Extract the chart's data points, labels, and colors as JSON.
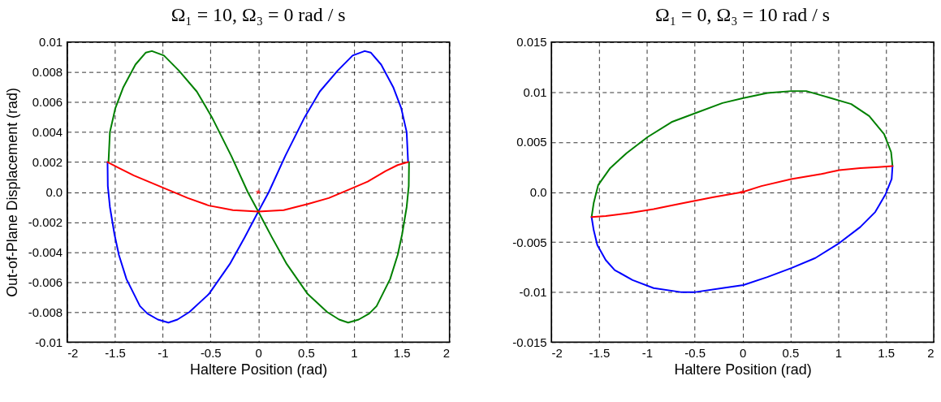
{
  "chart_data": [
    {
      "type": "line",
      "title": "Ω₁ = 10,   Ω₃ = 0    rad / s",
      "xlabel": "Haltere Position (rad)",
      "ylabel": "Out-of-Plane Displacement  (rad)",
      "xlim": [
        -2,
        2
      ],
      "xticks": [
        -2,
        -1.5,
        -1,
        -0.5,
        0,
        0.5,
        1,
        1.5,
        2
      ],
      "ylim": [
        -0.01,
        0.01
      ],
      "yticks": [
        -0.01,
        -0.008,
        -0.006,
        -0.004,
        -0.002,
        {
          "value": 0,
          "label": "0.0"
        },
        0.002,
        0.004,
        0.006,
        0.008,
        0.01
      ],
      "grid": true,
      "line_style": "solid",
      "series": [
        {
          "color": "#0000ff",
          "x": [
            -1.577,
            -1.574,
            -1.552,
            -1.505,
            -1.458,
            -1.379,
            -1.238,
            -1.16,
            -1.05,
            -0.94,
            -0.846,
            -0.721,
            -0.517,
            -0.298,
            -0.141,
            0,
            0.11,
            0.282,
            0.486,
            0.643,
            0.831,
            0.987,
            1.113,
            1.176,
            1.285,
            1.411,
            1.495,
            1.552,
            1.567
          ],
          "values": [
            0.002,
            0.0004,
            -0.001,
            -0.0028,
            -0.0042,
            -0.0058,
            -0.0076,
            -0.0081,
            -0.0085,
            -0.0087,
            -0.0085,
            -0.008,
            -0.0068,
            -0.0048,
            -0.003,
            -0.0013,
            0.0,
            0.0024,
            0.005,
            0.0067,
            0.0081,
            0.0091,
            0.0094,
            0.0093,
            0.0085,
            0.007,
            0.0056,
            0.004,
            0.002
          ]
        },
        {
          "color": "#008000",
          "x": [
            -1.567,
            -1.552,
            -1.495,
            -1.411,
            -1.285,
            -1.176,
            -1.113,
            -0.987,
            -0.831,
            -0.643,
            -0.486,
            -0.282,
            -0.11,
            0,
            0.141,
            0.298,
            0.517,
            0.721,
            0.846,
            0.94,
            1.05,
            1.16,
            1.238,
            1.379,
            1.458,
            1.505,
            1.552,
            1.574,
            1.577
          ],
          "values": [
            0.002,
            0.004,
            0.0056,
            0.007,
            0.0085,
            0.0093,
            0.0094,
            0.0091,
            0.0081,
            0.0067,
            0.005,
            0.0024,
            0.0,
            -0.0013,
            -0.003,
            -0.0048,
            -0.0068,
            -0.008,
            -0.0085,
            -0.0087,
            -0.0085,
            -0.0081,
            -0.0076,
            -0.0058,
            -0.0042,
            -0.0028,
            -0.001,
            0.0004,
            0.002
          ]
        },
        {
          "color": "#ff0000",
          "x": [
            -1.577,
            -1.458,
            -1.301,
            -1.113,
            -0.925,
            -0.737,
            -0.517,
            -0.266,
            0,
            0.266,
            0.517,
            0.737,
            0.925,
            1.144,
            1.332,
            1.458,
            1.567
          ],
          "values": [
            0.002,
            0.0016,
            0.0011,
            0.0006,
            0.0001,
            -0.0004,
            -0.0009,
            -0.0012,
            -0.0013,
            -0.0012,
            -0.0008,
            -0.0004,
            0.0001,
            0.0007,
            0.0014,
            0.0018,
            0.002
          ]
        },
        {
          "type": "scatter",
          "marker": "star",
          "color": "#ff0000",
          "x": [
            0
          ],
          "values": [
            0
          ]
        }
      ]
    },
    {
      "type": "line",
      "title": "Ω₁ = 0,   Ω₃ = 10    rad / s",
      "xlabel": "Haltere Position (rad)",
      "xlim": [
        -2,
        2
      ],
      "xticks": [
        -2,
        -1.5,
        -1,
        -0.5,
        0,
        0.5,
        1,
        1.5,
        2
      ],
      "ylim": [
        -0.015,
        0.015
      ],
      "yticks": [
        -0.015,
        -0.01,
        -0.005,
        {
          "value": 0,
          "label": "0.0"
        },
        0.005,
        0.01,
        0.015
      ],
      "grid": true,
      "line_style": "solid",
      "series": [
        {
          "color": "#008000",
          "x": [
            -1.579,
            -1.557,
            -1.51,
            -1.384,
            -1.212,
            -0.993,
            -0.742,
            -0.492,
            -0.21,
            0.009,
            0.26,
            0.51,
            0.667,
            0.886,
            1.137,
            1.325,
            1.481,
            1.554,
            1.569
          ],
          "values": [
            -0.0025,
            -0.0011,
            0.0007,
            0.0024,
            0.0039,
            0.0055,
            0.007,
            0.0079,
            0.0089,
            0.0094,
            0.0099,
            0.0101,
            0.0101,
            0.0095,
            0.0088,
            0.0076,
            0.0058,
            0.004,
            0.0026
          ]
        },
        {
          "color": "#0000ff",
          "x": [
            -1.579,
            -1.557,
            -1.519,
            -1.431,
            -1.337,
            -1.15,
            -0.93,
            -0.648,
            -0.492,
            -0.21,
            0.009,
            0.26,
            0.51,
            0.761,
            1.012,
            1.231,
            1.388,
            1.497,
            1.56,
            1.569
          ],
          "values": [
            -0.0025,
            -0.0038,
            -0.0053,
            -0.0068,
            -0.0078,
            -0.0088,
            -0.0096,
            -0.01,
            -0.01,
            -0.0096,
            -0.0093,
            -0.0085,
            -0.0076,
            -0.0066,
            -0.0051,
            -0.0035,
            -0.002,
            -0.0002,
            0.0013,
            0.0026
          ]
        },
        {
          "color": "#ff0000",
          "x": [
            -1.579,
            -1.431,
            -1.181,
            -0.93,
            -0.617,
            -0.304,
            0,
            0.197,
            0.51,
            0.824,
            1.012,
            1.231,
            1.419,
            1.569
          ],
          "values": [
            -0.0025,
            -0.0024,
            -0.0021,
            -0.0017,
            -0.0011,
            -0.0005,
            0,
            0.0006,
            0.0013,
            0.0018,
            0.0022,
            0.0024,
            0.0025,
            0.0026
          ]
        },
        {
          "type": "scatter",
          "marker": "star",
          "color": "#ff0000",
          "x": [
            0
          ],
          "values": [
            0
          ]
        }
      ]
    }
  ]
}
